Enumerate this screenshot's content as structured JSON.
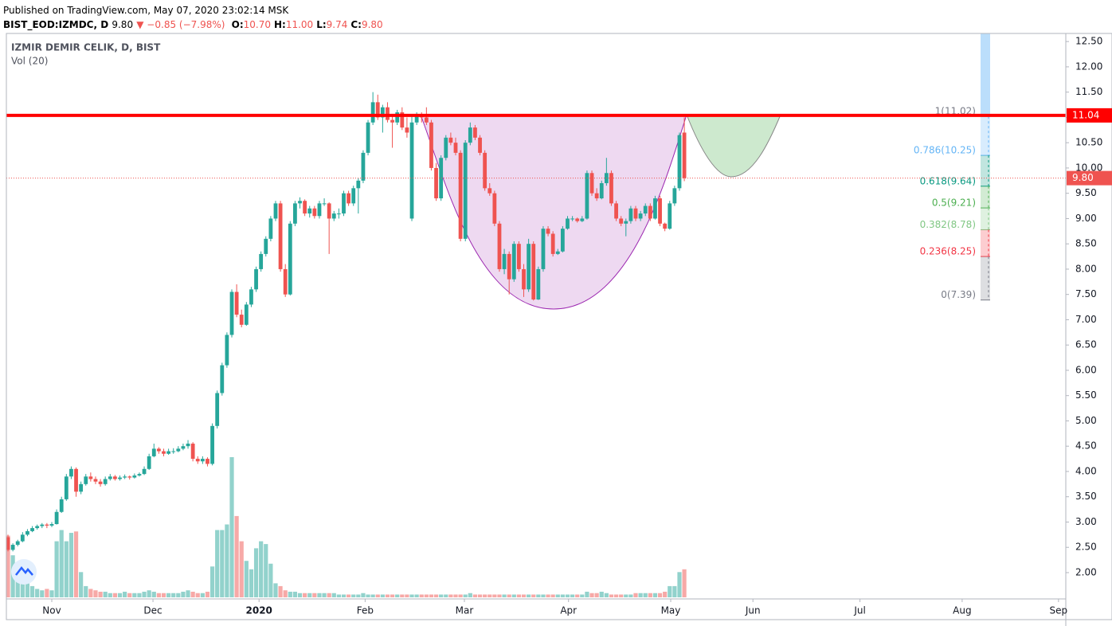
{
  "header": {
    "published": "Published on TradingView.com, May 07, 2020 23:02:14 MSK",
    "symbol": "BIST_EOD:IZMDC, D",
    "last": "9.80",
    "change": "▼ −0.85 (−7.98%)",
    "fields": [
      {
        "key": "O:",
        "value": "10.70"
      },
      {
        "key": "H:",
        "value": "11.00"
      },
      {
        "key": "L:",
        "value": "9.74"
      },
      {
        "key": "C:",
        "value": "9.80"
      }
    ]
  },
  "chart_data": {
    "type": "candlestick",
    "title": "IZMIR DEMIR CELIK, D, BIST",
    "volume_title": "Vol (20)",
    "up_color": "#26a69a",
    "down_color": "#ef5350",
    "grid": true,
    "ohlc": [
      [
        2.7,
        2.75,
        2.42,
        2.45
      ],
      [
        2.45,
        2.58,
        2.42,
        2.55
      ],
      [
        2.55,
        2.65,
        2.52,
        2.62
      ],
      [
        2.62,
        2.8,
        2.6,
        2.75
      ],
      [
        2.75,
        2.86,
        2.72,
        2.82
      ],
      [
        2.82,
        2.92,
        2.8,
        2.88
      ],
      [
        2.88,
        2.95,
        2.85,
        2.92
      ],
      [
        2.92,
        2.98,
        2.88,
        2.95
      ],
      [
        2.95,
        2.98,
        2.88,
        2.93
      ],
      [
        2.93,
        3.0,
        2.9,
        2.96
      ],
      [
        2.96,
        3.25,
        2.95,
        3.2
      ],
      [
        3.2,
        3.5,
        3.18,
        3.45
      ],
      [
        3.45,
        3.95,
        3.42,
        3.9
      ],
      [
        3.9,
        4.1,
        3.85,
        4.05
      ],
      [
        4.05,
        4.08,
        3.5,
        3.6
      ],
      [
        3.6,
        3.8,
        3.55,
        3.75
      ],
      [
        3.75,
        3.95,
        3.72,
        3.9
      ],
      [
        3.9,
        3.98,
        3.8,
        3.85
      ],
      [
        3.85,
        3.9,
        3.75,
        3.8
      ],
      [
        3.8,
        3.85,
        3.7,
        3.75
      ],
      [
        3.75,
        3.9,
        3.72,
        3.85
      ],
      [
        3.85,
        3.95,
        3.82,
        3.9
      ],
      [
        3.9,
        3.93,
        3.82,
        3.85
      ],
      [
        3.85,
        3.92,
        3.82,
        3.88
      ],
      [
        3.88,
        3.94,
        3.85,
        3.9
      ],
      [
        3.9,
        3.92,
        3.84,
        3.88
      ],
      [
        3.88,
        3.96,
        3.86,
        3.92
      ],
      [
        3.92,
        3.98,
        3.9,
        3.95
      ],
      [
        3.95,
        4.1,
        3.93,
        4.05
      ],
      [
        4.05,
        4.35,
        4.03,
        4.3
      ],
      [
        4.3,
        4.55,
        4.28,
        4.45
      ],
      [
        4.45,
        4.48,
        4.35,
        4.4
      ],
      [
        4.4,
        4.45,
        4.3,
        4.35
      ],
      [
        4.35,
        4.45,
        4.33,
        4.4
      ],
      [
        4.4,
        4.46,
        4.35,
        4.4
      ],
      [
        4.4,
        4.5,
        4.38,
        4.45
      ],
      [
        4.45,
        4.55,
        4.42,
        4.5
      ],
      [
        4.5,
        4.62,
        4.45,
        4.55
      ],
      [
        4.55,
        4.58,
        4.2,
        4.25
      ],
      [
        4.25,
        4.3,
        4.15,
        4.2
      ],
      [
        4.2,
        4.3,
        4.15,
        4.25
      ],
      [
        4.25,
        4.28,
        4.1,
        4.15
      ],
      [
        4.15,
        4.95,
        4.12,
        4.9
      ],
      [
        4.9,
        5.6,
        4.85,
        5.55
      ],
      [
        5.55,
        6.15,
        5.5,
        6.1
      ],
      [
        6.1,
        6.75,
        6.05,
        6.7
      ],
      [
        6.7,
        7.6,
        6.65,
        7.55
      ],
      [
        7.55,
        7.7,
        7.05,
        7.1
      ],
      [
        7.1,
        7.2,
        6.85,
        6.9
      ],
      [
        6.9,
        7.35,
        6.88,
        7.3
      ],
      [
        7.3,
        7.65,
        7.25,
        7.6
      ],
      [
        7.6,
        8.05,
        7.55,
        8.0
      ],
      [
        8.0,
        8.35,
        7.95,
        8.3
      ],
      [
        8.3,
        8.65,
        8.25,
        8.6
      ],
      [
        8.6,
        9.05,
        8.55,
        9.0
      ],
      [
        9.0,
        9.35,
        8.95,
        9.3
      ],
      [
        9.3,
        9.35,
        7.95,
        8.0
      ],
      [
        8.0,
        8.1,
        7.45,
        7.5
      ],
      [
        7.5,
        8.95,
        7.48,
        8.9
      ],
      [
        8.9,
        9.35,
        8.85,
        9.3
      ],
      [
        9.3,
        9.42,
        9.2,
        9.35
      ],
      [
        9.35,
        9.38,
        9.05,
        9.1
      ],
      [
        9.1,
        9.25,
        9.02,
        9.2
      ],
      [
        9.2,
        9.25,
        9.0,
        9.05
      ],
      [
        9.05,
        9.35,
        9.0,
        9.3
      ],
      [
        9.3,
        9.4,
        9.25,
        9.3
      ],
      [
        9.3,
        9.32,
        8.3,
        9.0
      ],
      [
        9.0,
        9.15,
        8.95,
        9.1
      ],
      [
        9.1,
        9.2,
        9.0,
        9.1
      ],
      [
        9.1,
        9.55,
        9.05,
        9.5
      ],
      [
        9.5,
        9.55,
        9.25,
        9.3
      ],
      [
        9.3,
        9.65,
        9.25,
        9.6
      ],
      [
        9.6,
        9.8,
        9.1,
        9.75
      ],
      [
        9.75,
        10.35,
        9.7,
        10.3
      ],
      [
        10.3,
        10.95,
        10.25,
        10.9
      ],
      [
        10.9,
        11.5,
        10.85,
        11.3
      ],
      [
        11.3,
        11.45,
        10.95,
        11.0
      ],
      [
        11.0,
        11.25,
        10.7,
        11.2
      ],
      [
        11.2,
        11.3,
        10.9,
        10.95
      ],
      [
        10.95,
        11.05,
        10.4,
        10.9
      ],
      [
        10.9,
        11.15,
        10.85,
        11.1
      ],
      [
        11.1,
        11.2,
        10.75,
        10.8
      ],
      [
        10.8,
        11.0,
        10.6,
        10.7
      ],
      [
        9.0,
        11.05,
        8.95,
        10.9
      ],
      [
        10.9,
        11.1,
        10.85,
        11.05
      ],
      [
        11.05,
        11.1,
        10.9,
        11.0
      ],
      [
        11.0,
        11.2,
        10.85,
        10.9
      ],
      [
        10.9,
        10.95,
        9.95,
        10.0
      ],
      [
        10.0,
        10.1,
        9.35,
        9.4
      ],
      [
        9.4,
        10.25,
        9.35,
        10.2
      ],
      [
        10.2,
        10.65,
        10.15,
        10.6
      ],
      [
        10.6,
        10.7,
        10.45,
        10.5
      ],
      [
        10.5,
        10.6,
        10.25,
        10.3
      ],
      [
        10.3,
        10.35,
        8.55,
        8.6
      ],
      [
        8.6,
        10.55,
        8.55,
        10.5
      ],
      [
        10.5,
        10.9,
        10.45,
        10.8
      ],
      [
        10.8,
        10.85,
        10.55,
        10.6
      ],
      [
        10.6,
        10.65,
        10.25,
        10.3
      ],
      [
        10.3,
        10.35,
        9.55,
        9.6
      ],
      [
        9.6,
        9.7,
        9.45,
        9.5
      ],
      [
        9.5,
        9.55,
        8.85,
        8.9
      ],
      [
        8.9,
        8.95,
        7.95,
        8.0
      ],
      [
        8.0,
        8.4,
        7.9,
        8.3
      ],
      [
        8.3,
        8.35,
        7.5,
        7.8
      ],
      [
        7.8,
        8.55,
        7.75,
        8.5
      ],
      [
        8.5,
        8.55,
        7.95,
        8.0
      ],
      [
        8.0,
        8.1,
        7.45,
        7.6
      ],
      [
        7.6,
        8.6,
        7.55,
        8.5
      ],
      [
        8.5,
        8.55,
        7.38,
        7.4
      ],
      [
        7.4,
        8.05,
        7.39,
        8.0
      ],
      [
        8.0,
        8.85,
        7.95,
        8.8
      ],
      [
        8.8,
        8.85,
        8.65,
        8.7
      ],
      [
        8.7,
        8.75,
        8.25,
        8.3
      ],
      [
        8.3,
        8.4,
        8.28,
        8.35
      ],
      [
        8.35,
        8.85,
        8.33,
        8.8
      ],
      [
        8.8,
        9.05,
        8.78,
        9.0
      ],
      [
        9.0,
        9.05,
        8.95,
        9.0
      ],
      [
        9.0,
        9.02,
        8.92,
        8.95
      ],
      [
        8.95,
        9.05,
        8.93,
        9.0
      ],
      [
        9.0,
        9.95,
        8.98,
        9.9
      ],
      [
        9.9,
        9.95,
        9.45,
        9.5
      ],
      [
        9.5,
        9.6,
        9.35,
        9.4
      ],
      [
        9.4,
        9.75,
        9.38,
        9.7
      ],
      [
        9.7,
        10.2,
        9.65,
        9.9
      ],
      [
        9.9,
        9.95,
        9.25,
        9.3
      ],
      [
        9.3,
        9.35,
        8.95,
        9.0
      ],
      [
        9.0,
        9.05,
        8.85,
        8.9
      ],
      [
        8.9,
        9.0,
        8.65,
        8.95
      ],
      [
        8.95,
        9.25,
        8.9,
        9.2
      ],
      [
        9.2,
        9.25,
        8.95,
        9.0
      ],
      [
        9.0,
        9.15,
        8.95,
        9.1
      ],
      [
        9.1,
        9.3,
        9.05,
        9.25
      ],
      [
        9.25,
        9.3,
        8.95,
        9.0
      ],
      [
        9.0,
        9.45,
        8.98,
        9.4
      ],
      [
        9.4,
        9.45,
        8.85,
        8.9
      ],
      [
        8.9,
        8.92,
        8.75,
        8.8
      ],
      [
        8.8,
        9.35,
        8.78,
        9.3
      ],
      [
        9.3,
        9.65,
        9.25,
        9.6
      ],
      [
        9.6,
        10.7,
        9.55,
        10.65
      ],
      [
        10.7,
        11.0,
        9.74,
        9.8
      ]
    ],
    "volume": {
      "ylim": [
        0,
        100
      ],
      "values": [
        44,
        30,
        18,
        14,
        10,
        8,
        6,
        5,
        6,
        5,
        40,
        48,
        40,
        46,
        47,
        18,
        8,
        6,
        5,
        4,
        4,
        3,
        3,
        3,
        4,
        3,
        3,
        3,
        4,
        5,
        4,
        3,
        3,
        3,
        3,
        3,
        4,
        5,
        4,
        3,
        3,
        4,
        22,
        48,
        48,
        52,
        100,
        58,
        40,
        26,
        20,
        35,
        40,
        38,
        24,
        10,
        8,
        5,
        4,
        4,
        3,
        3,
        3,
        3,
        3,
        3,
        3,
        3,
        2,
        2,
        2,
        2,
        2,
        3,
        2,
        2,
        2,
        2,
        2,
        2,
        2,
        2,
        2,
        2,
        2,
        2,
        2,
        2,
        2,
        2,
        2,
        2,
        2,
        2,
        2,
        3,
        2,
        2,
        2,
        2,
        2,
        2,
        2,
        2,
        2,
        2,
        2,
        2,
        2,
        2,
        2,
        2,
        2,
        2,
        2,
        2,
        2,
        2,
        2,
        4,
        3,
        3,
        4,
        3,
        2,
        2,
        2,
        2,
        2,
        3,
        3,
        3,
        3,
        3,
        3,
        4,
        8,
        8,
        18,
        20
      ]
    },
    "xlim": [
      -0.33,
      217.4
    ],
    "xticks": [
      {
        "value": 9,
        "label": "Nov"
      },
      {
        "value": 29.8,
        "label": "Dec"
      },
      {
        "value": 51.6,
        "label": "2020"
      },
      {
        "value": 73.4,
        "label": "Feb"
      },
      {
        "value": 93.8,
        "label": "Mar"
      },
      {
        "value": 115.2,
        "label": "Apr"
      },
      {
        "value": 136.2,
        "label": "May"
      },
      {
        "value": 153.1,
        "label": "Jun"
      },
      {
        "value": 175.1,
        "label": "Jul"
      },
      {
        "value": 196.1,
        "label": "Aug"
      },
      {
        "value": 215.9,
        "label": "Sep"
      }
    ],
    "ylim": [
      1.48,
      12.66
    ],
    "yticks": [
      {
        "value": 2,
        "label": "2.00"
      },
      {
        "value": 2.5,
        "label": "2.50"
      },
      {
        "value": 3,
        "label": "3.00"
      },
      {
        "value": 3.5,
        "label": "3.50"
      },
      {
        "value": 4,
        "label": "4.00"
      },
      {
        "value": 4.5,
        "label": "4.50"
      },
      {
        "value": 5,
        "label": "5.00"
      },
      {
        "value": 5.5,
        "label": "5.50"
      },
      {
        "value": 6,
        "label": "6.00"
      },
      {
        "value": 6.5,
        "label": "6.50"
      },
      {
        "value": 7,
        "label": "7.00"
      },
      {
        "value": 7.5,
        "label": "7.50"
      },
      {
        "value": 8,
        "label": "8.00"
      },
      {
        "value": 8.5,
        "label": "8.50"
      },
      {
        "value": 9,
        "label": "9.00"
      },
      {
        "value": 9.5,
        "label": "9.50"
      },
      {
        "value": 10,
        "label": "10.00"
      },
      {
        "value": 10.5,
        "label": "10.50"
      },
      {
        "value": 11,
        "label": "11.00"
      },
      {
        "value": 11.5,
        "label": "11.50"
      },
      {
        "value": 12,
        "label": "12.00"
      },
      {
        "value": 12.5,
        "label": "12.50"
      }
    ],
    "hline": {
      "value": 11.04,
      "color": "#ff0000"
    },
    "last_price": {
      "value": 9.8,
      "label": "9.80",
      "color": "#ef5350"
    },
    "fib": [
      {
        "value": 11.02,
        "label": "1(11.02)",
        "color": "#787b86"
      },
      {
        "value": 10.25,
        "label": "0.786(10.25)",
        "color": "#64b5f6"
      },
      {
        "value": 9.64,
        "label": "0.618(9.64)",
        "color": "#089981"
      },
      {
        "value": 9.21,
        "label": "0.5(9.21)",
        "color": "#4caf50"
      },
      {
        "value": 8.78,
        "label": "0.382(8.78)",
        "color": "#81c784"
      },
      {
        "value": 8.25,
        "label": "0.236(8.25)",
        "color": "#f23645"
      },
      {
        "value": 7.39,
        "label": "0(7.39)",
        "color": "#787b86"
      }
    ]
  }
}
